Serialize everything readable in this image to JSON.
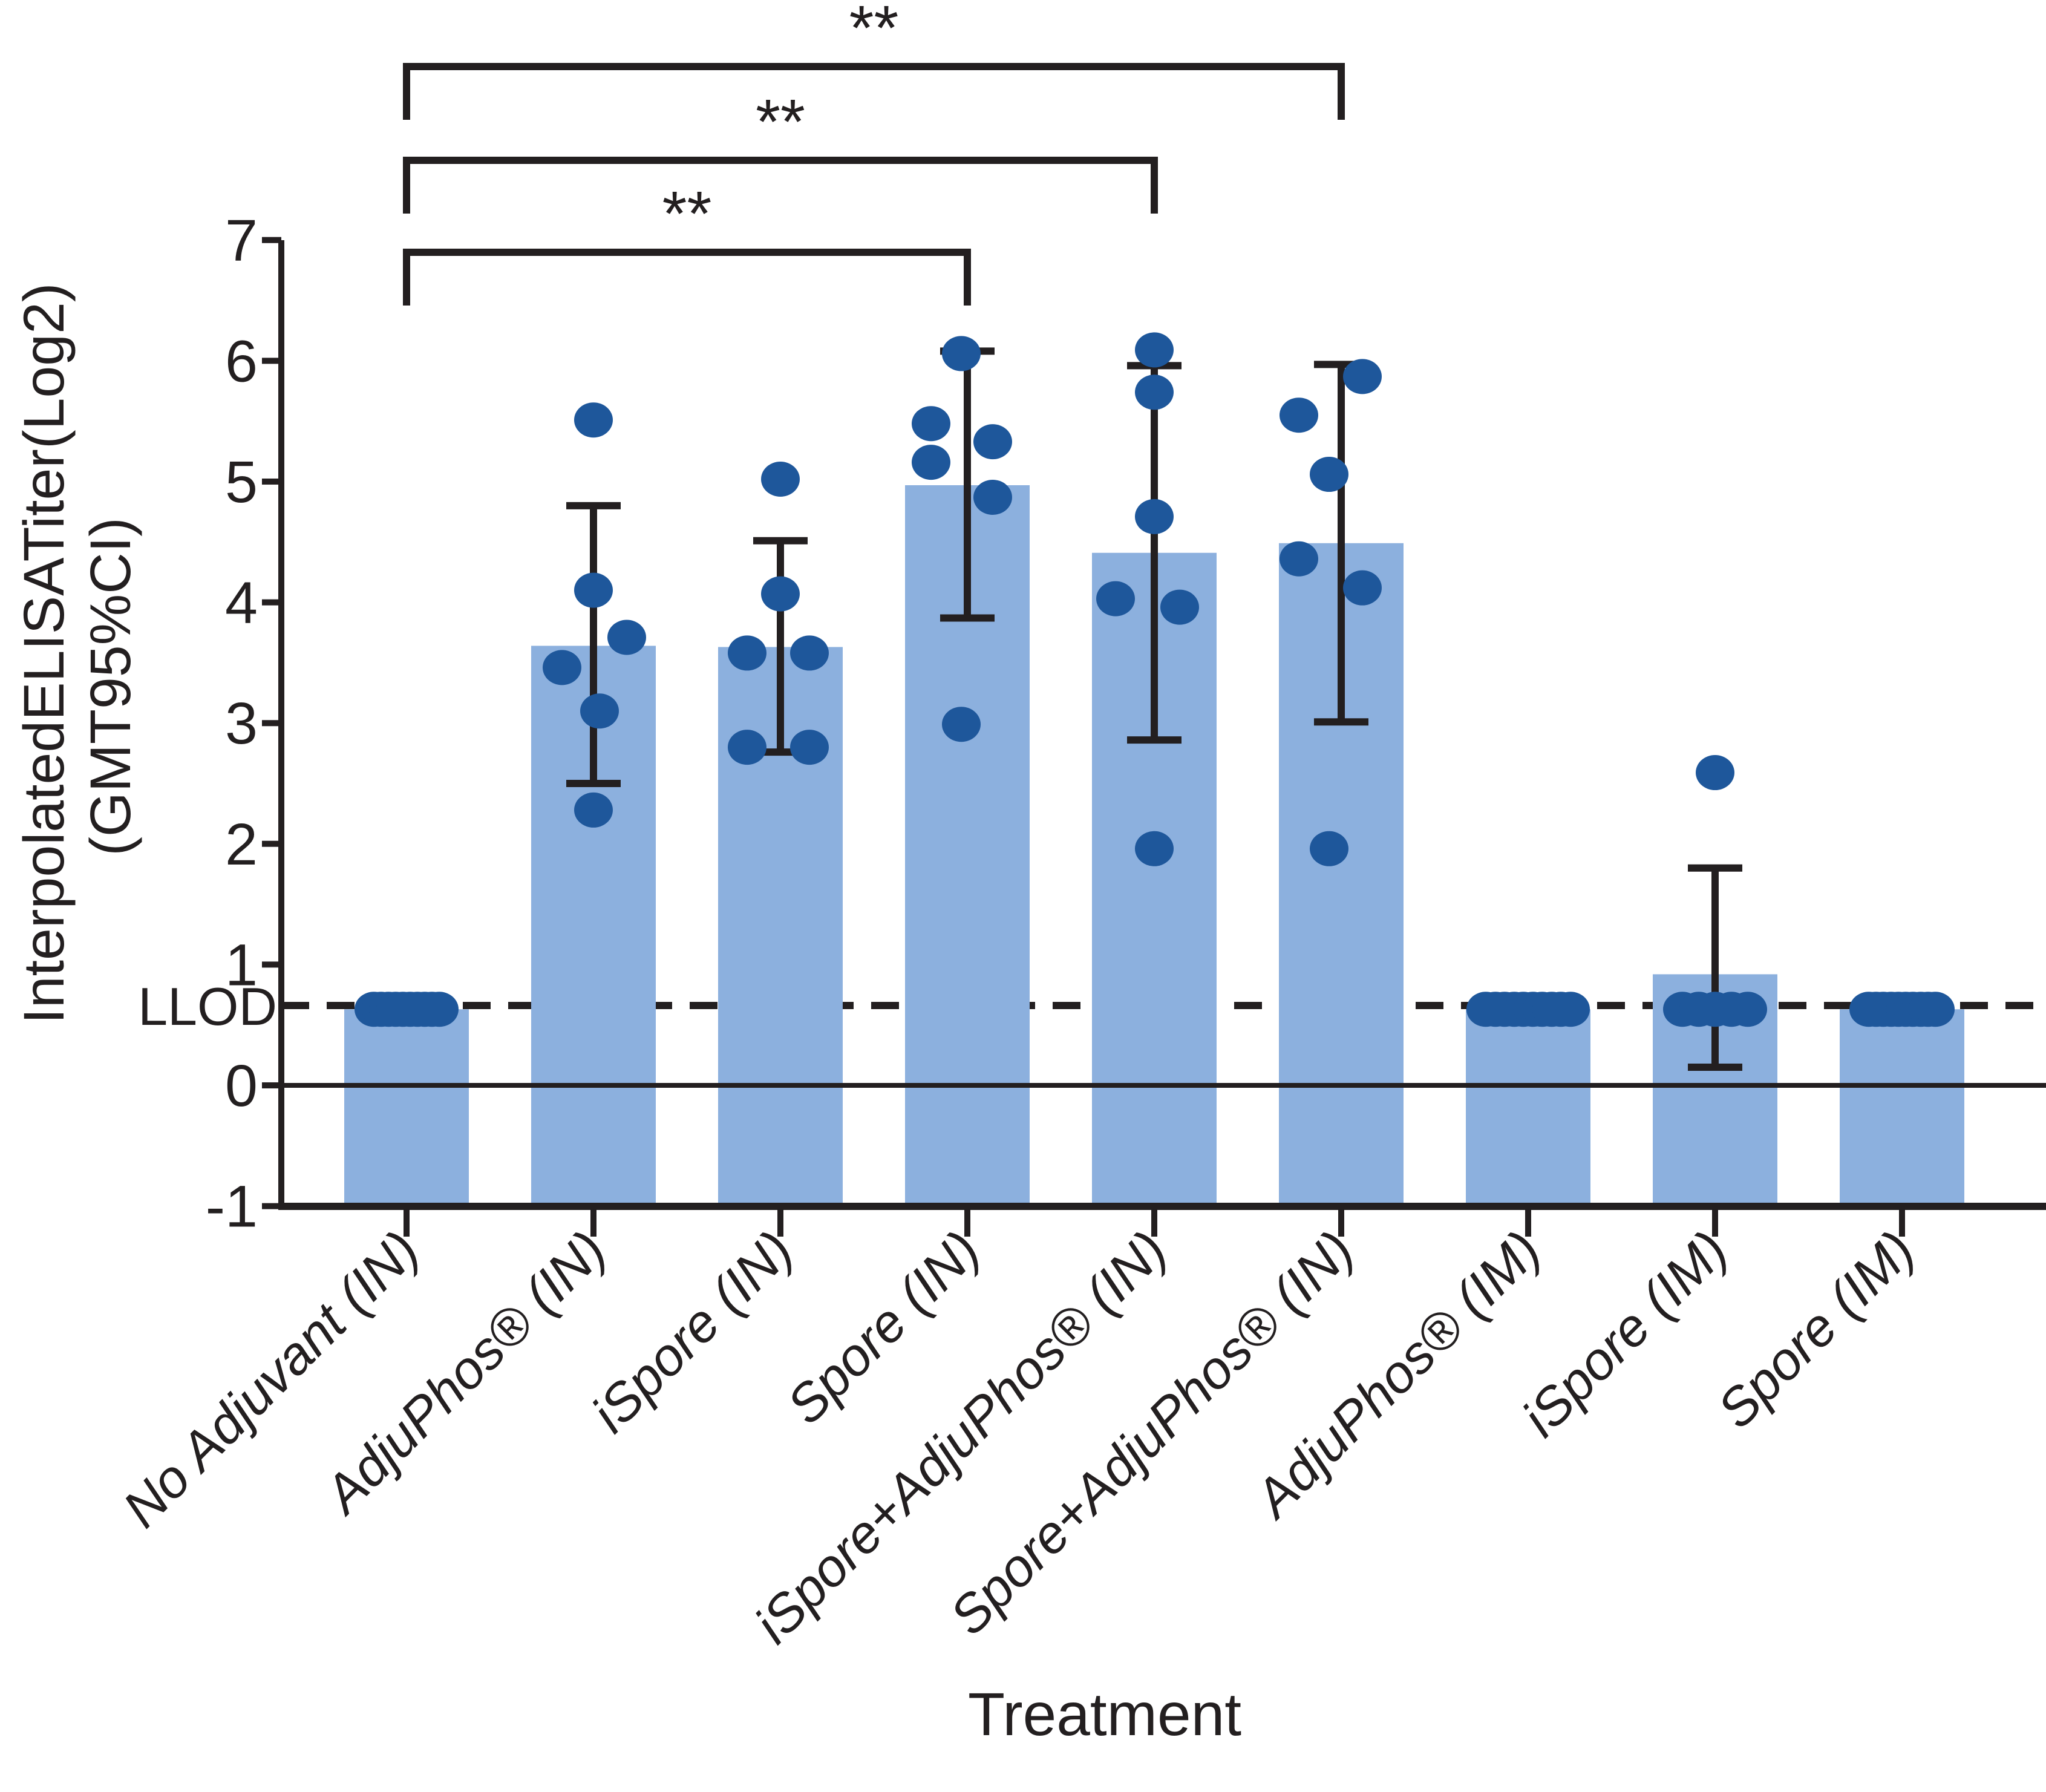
{
  "chart_data": {
    "type": "bar",
    "title": "",
    "xlabel": "Treatment",
    "ylabel_line1": "InterpolatedELISATiter(Log2)",
    "ylabel_line2": "(GMT95%CI)",
    "llod_label": "LLOD",
    "llod_value": 0.65,
    "ylim": [
      -1,
      7
    ],
    "yticks": [
      7,
      6,
      5,
      4,
      3,
      2,
      1,
      0,
      -1
    ],
    "grid": false,
    "legend": "none",
    "categories": [
      "No Adjuvant (IN)",
      "AdjuPhos® (IN)",
      "iSpore (IN)",
      "Spore (IN)",
      "iSpore+AdjuPhos® (IN)",
      "Spore+AdjuPhos® (IN)",
      "AdjuPhos® (IM)",
      "iSpore (IM)",
      "Spore (IM)"
    ],
    "series": [
      {
        "name": "GMT (bar heights, Log2)",
        "values": [
          0.63,
          3.64,
          3.63,
          4.97,
          4.41,
          4.49,
          0.63,
          0.92,
          0.63
        ]
      }
    ],
    "ci95": [
      null,
      {
        "hi": 4.8,
        "lo": 2.5
      },
      {
        "hi": 4.51,
        "lo": 2.76
      },
      {
        "hi": 6.08,
        "lo": 3.87
      },
      {
        "hi": 5.96,
        "lo": 2.86
      },
      {
        "hi": 5.97,
        "lo": 3.01
      },
      null,
      {
        "hi": 1.8,
        "lo": 0.15
      },
      null
    ],
    "points": [
      {
        "values": [
          0.63,
          0.63,
          0.63,
          0.63,
          0.63,
          0.63,
          0.63,
          0.63,
          0.63,
          0.63
        ],
        "dx": [
          -54,
          -42,
          -30,
          -18,
          -6,
          6,
          18,
          30,
          42,
          54
        ]
      },
      {
        "values": [
          5.51,
          4.1,
          3.71,
          3.46,
          3.1,
          2.28
        ],
        "dx": [
          0,
          0,
          55,
          -52,
          10,
          0
        ]
      },
      {
        "values": [
          5.02,
          4.07,
          3.58,
          3.58,
          2.8,
          2.8
        ],
        "dx": [
          0,
          0,
          -55,
          48,
          -55,
          48
        ]
      },
      {
        "values": [
          6.06,
          5.48,
          5.33,
          5.16,
          4.87,
          2.99
        ],
        "dx": [
          -10,
          -60,
          42,
          -60,
          42,
          -10
        ]
      },
      {
        "values": [
          6.09,
          5.74,
          4.71,
          4.03,
          3.96,
          1.96
        ],
        "dx": [
          0,
          0,
          0,
          -64,
          42,
          0
        ]
      },
      {
        "values": [
          5.87,
          5.55,
          5.06,
          4.36,
          4.12,
          1.96
        ],
        "dx": [
          35,
          -70,
          -20,
          -70,
          35,
          -20
        ]
      },
      {
        "values": [
          0.63,
          0.63,
          0.63,
          0.63,
          0.63,
          0.63,
          0.63,
          0.63,
          0.63,
          0.63
        ],
        "dx": [
          -70,
          -54,
          -39,
          -23,
          -8,
          8,
          23,
          39,
          54,
          70
        ]
      },
      {
        "values": [
          2.59,
          0.63,
          0.63,
          0.63,
          0.63,
          0.63
        ],
        "dx": [
          0,
          -54,
          -27,
          0,
          27,
          54
        ]
      },
      {
        "values": [
          0.63,
          0.63,
          0.63,
          0.63,
          0.63,
          0.63,
          0.63,
          0.63,
          0.63,
          0.63
        ],
        "dx": [
          -55,
          -43,
          -31,
          -18,
          -6,
          6,
          18,
          31,
          43,
          55
        ]
      }
    ],
    "significance": [
      {
        "from": 0,
        "to": 3,
        "label": "**"
      },
      {
        "from": 0,
        "to": 4,
        "label": "**"
      },
      {
        "from": 0,
        "to": 5,
        "label": "**"
      }
    ],
    "colors": {
      "bar_fill": "#8cb0de",
      "point_fill": "#1e579b",
      "line": "#231f20",
      "background": "#ffffff"
    }
  }
}
